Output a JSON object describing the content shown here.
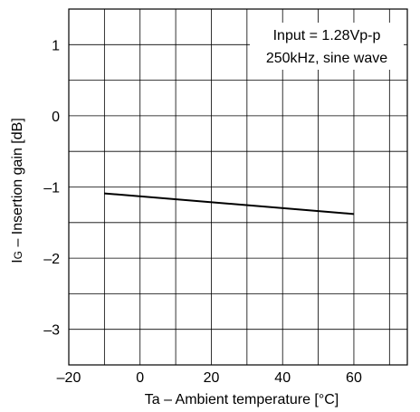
{
  "chart_data": {
    "type": "line",
    "title": "",
    "xlabel": "Ta – Ambient temperature [°C]",
    "ylabel_main": "I",
    "ylabel_sub": "G",
    "ylabel_rest": " – Insertion gain [dB]",
    "xlim": [
      -20,
      75
    ],
    "ylim": [
      -3.5,
      1.5
    ],
    "x_ticks": [
      -20,
      0,
      20,
      40,
      60
    ],
    "x_tick_labels": [
      "–20",
      "0",
      "20",
      "40",
      "60"
    ],
    "y_ticks": [
      1,
      0,
      -1,
      -2,
      -3
    ],
    "y_tick_labels": [
      "1",
      "0",
      "–1",
      "–2",
      "–3"
    ],
    "grid": true,
    "x_minor_grid_step": 10,
    "y_minor_grid_step": 0.5,
    "annotation_lines": [
      "Input = 1.28Vp-p",
      "250kHz, sine wave"
    ],
    "series": [
      {
        "x": [
          -10,
          60
        ],
        "y": [
          -1.09,
          -1.38
        ]
      }
    ],
    "colors": {
      "line": "#000000",
      "grid": "#000000",
      "background": "#ffffff"
    }
  }
}
